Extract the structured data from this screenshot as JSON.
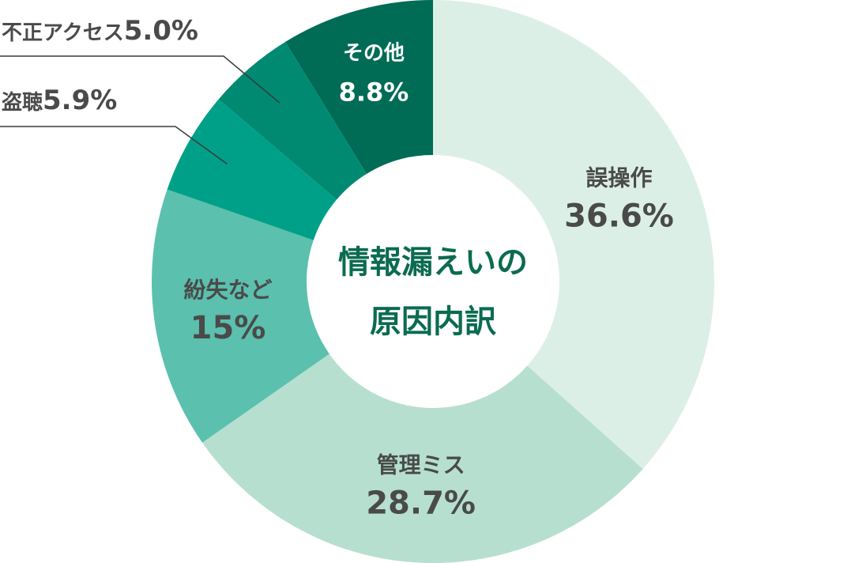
{
  "chart_data": {
    "type": "pie",
    "donut": true,
    "title": "情報漏えいの原因内訳",
    "title_lines": [
      "情報漏えいの",
      "原因内訳"
    ],
    "start_angle_deg": 0,
    "direction": "clockwise",
    "slices": [
      {
        "label": "誤操作",
        "value": 36.6,
        "value_text": "36.6%",
        "color": "#dcefe6",
        "text_color": "#4a4a4a",
        "label_style": "inside"
      },
      {
        "label": "管理ミス",
        "value": 28.7,
        "value_text": "28.7%",
        "color": "#b6dfd0",
        "text_color": "#4a4a4a",
        "label_style": "inside"
      },
      {
        "label": "紛失など",
        "value": 15,
        "value_text": "15%",
        "color": "#5bc0ae",
        "text_color": "#4a4a4a",
        "label_style": "inside"
      },
      {
        "label": "盗聴",
        "value": 5.9,
        "value_text": "5.9%",
        "color": "#00a088",
        "text_color": "#4a4a4a",
        "label_style": "callout"
      },
      {
        "label": "不正アクセス",
        "value": 5.0,
        "value_text": "5.0%",
        "color": "#008a72",
        "text_color": "#4a4a4a",
        "label_style": "callout"
      },
      {
        "label": "その他",
        "value": 8.8,
        "value_text": "8.8%",
        "color": "#006c56",
        "text_color": "#ffffff",
        "label_style": "inside"
      }
    ],
    "title_color": "#0b6b50",
    "background": "#ffffff"
  }
}
